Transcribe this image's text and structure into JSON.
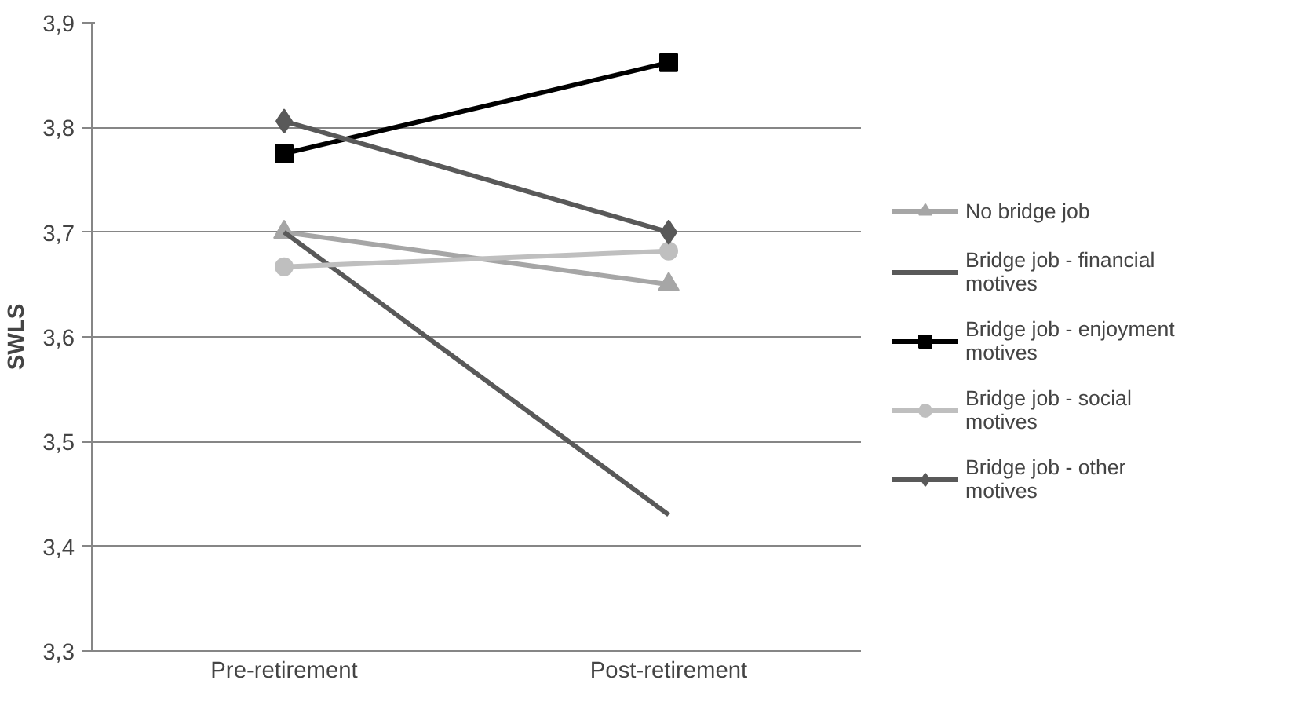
{
  "chart_data": {
    "type": "line",
    "ylabel": "SWLS",
    "categories": [
      "Pre-retirement",
      "Post-retirement"
    ],
    "ylim": [
      3.3,
      3.9
    ],
    "yticks": [
      {
        "value": 3.3,
        "label": "3,3"
      },
      {
        "value": 3.4,
        "label": "3,4"
      },
      {
        "value": 3.5,
        "label": "3,5"
      },
      {
        "value": 3.6,
        "label": "3,6"
      },
      {
        "value": 3.7,
        "label": "3,7"
      },
      {
        "value": 3.8,
        "label": "3,8"
      },
      {
        "value": 3.9,
        "label": "3,9"
      }
    ],
    "grid": "y",
    "legend": "right",
    "line_style": "solid",
    "series": [
      {
        "name": "No bridge job",
        "color": "#a6a6a6",
        "marker": "triangle",
        "values": [
          3.7,
          3.65
        ]
      },
      {
        "name": "Bridge job - financial motives",
        "color": "#595959",
        "marker": "none",
        "values": [
          3.7,
          3.43
        ]
      },
      {
        "name": "Bridge job - enjoyment motives",
        "color": "#000000",
        "marker": "square",
        "values": [
          3.775,
          3.862
        ]
      },
      {
        "name": "Bridge job - social motives",
        "color": "#bfbfbf",
        "marker": "circle",
        "values": [
          3.667,
          3.682
        ]
      },
      {
        "name": "Bridge job - other motives",
        "color": "#595959",
        "marker": "diamond",
        "values": [
          3.806,
          3.7
        ]
      }
    ]
  }
}
